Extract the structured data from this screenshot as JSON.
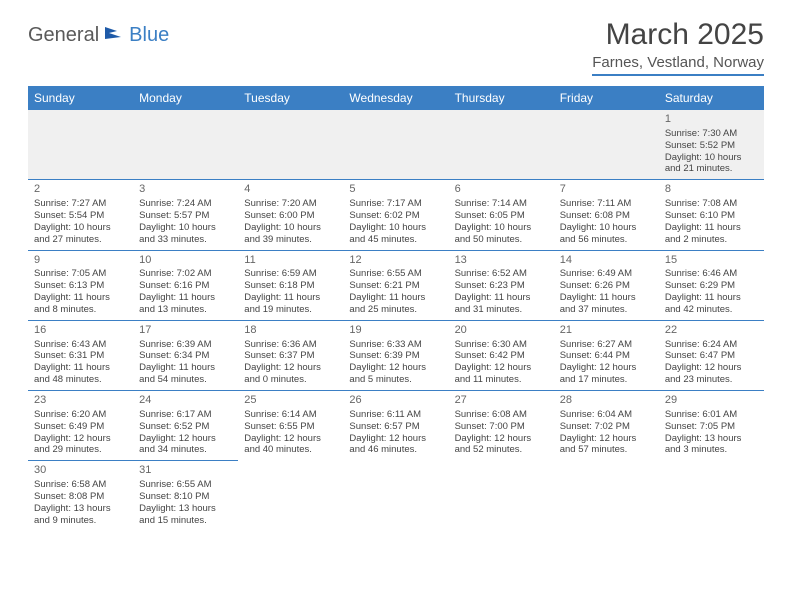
{
  "logo": {
    "general": "General",
    "blue": "Blue"
  },
  "title": "March 2025",
  "location": "Farnes, Vestland, Norway",
  "colors": {
    "header_bg": "#3b7fc4",
    "header_text": "#ffffff",
    "rule": "#3b7fc4",
    "body_text": "#444444",
    "alt_row_bg": "#f0f0f0"
  },
  "day_headers": [
    "Sunday",
    "Monday",
    "Tuesday",
    "Wednesday",
    "Thursday",
    "Friday",
    "Saturday"
  ],
  "weeks": [
    [
      null,
      null,
      null,
      null,
      null,
      null,
      {
        "n": "1",
        "sr": "Sunrise: 7:30 AM",
        "ss": "Sunset: 5:52 PM",
        "dl": "Daylight: 10 hours and 21 minutes."
      }
    ],
    [
      {
        "n": "2",
        "sr": "Sunrise: 7:27 AM",
        "ss": "Sunset: 5:54 PM",
        "dl": "Daylight: 10 hours and 27 minutes."
      },
      {
        "n": "3",
        "sr": "Sunrise: 7:24 AM",
        "ss": "Sunset: 5:57 PM",
        "dl": "Daylight: 10 hours and 33 minutes."
      },
      {
        "n": "4",
        "sr": "Sunrise: 7:20 AM",
        "ss": "Sunset: 6:00 PM",
        "dl": "Daylight: 10 hours and 39 minutes."
      },
      {
        "n": "5",
        "sr": "Sunrise: 7:17 AM",
        "ss": "Sunset: 6:02 PM",
        "dl": "Daylight: 10 hours and 45 minutes."
      },
      {
        "n": "6",
        "sr": "Sunrise: 7:14 AM",
        "ss": "Sunset: 6:05 PM",
        "dl": "Daylight: 10 hours and 50 minutes."
      },
      {
        "n": "7",
        "sr": "Sunrise: 7:11 AM",
        "ss": "Sunset: 6:08 PM",
        "dl": "Daylight: 10 hours and 56 minutes."
      },
      {
        "n": "8",
        "sr": "Sunrise: 7:08 AM",
        "ss": "Sunset: 6:10 PM",
        "dl": "Daylight: 11 hours and 2 minutes."
      }
    ],
    [
      {
        "n": "9",
        "sr": "Sunrise: 7:05 AM",
        "ss": "Sunset: 6:13 PM",
        "dl": "Daylight: 11 hours and 8 minutes."
      },
      {
        "n": "10",
        "sr": "Sunrise: 7:02 AM",
        "ss": "Sunset: 6:16 PM",
        "dl": "Daylight: 11 hours and 13 minutes."
      },
      {
        "n": "11",
        "sr": "Sunrise: 6:59 AM",
        "ss": "Sunset: 6:18 PM",
        "dl": "Daylight: 11 hours and 19 minutes."
      },
      {
        "n": "12",
        "sr": "Sunrise: 6:55 AM",
        "ss": "Sunset: 6:21 PM",
        "dl": "Daylight: 11 hours and 25 minutes."
      },
      {
        "n": "13",
        "sr": "Sunrise: 6:52 AM",
        "ss": "Sunset: 6:23 PM",
        "dl": "Daylight: 11 hours and 31 minutes."
      },
      {
        "n": "14",
        "sr": "Sunrise: 6:49 AM",
        "ss": "Sunset: 6:26 PM",
        "dl": "Daylight: 11 hours and 37 minutes."
      },
      {
        "n": "15",
        "sr": "Sunrise: 6:46 AM",
        "ss": "Sunset: 6:29 PM",
        "dl": "Daylight: 11 hours and 42 minutes."
      }
    ],
    [
      {
        "n": "16",
        "sr": "Sunrise: 6:43 AM",
        "ss": "Sunset: 6:31 PM",
        "dl": "Daylight: 11 hours and 48 minutes."
      },
      {
        "n": "17",
        "sr": "Sunrise: 6:39 AM",
        "ss": "Sunset: 6:34 PM",
        "dl": "Daylight: 11 hours and 54 minutes."
      },
      {
        "n": "18",
        "sr": "Sunrise: 6:36 AM",
        "ss": "Sunset: 6:37 PM",
        "dl": "Daylight: 12 hours and 0 minutes."
      },
      {
        "n": "19",
        "sr": "Sunrise: 6:33 AM",
        "ss": "Sunset: 6:39 PM",
        "dl": "Daylight: 12 hours and 5 minutes."
      },
      {
        "n": "20",
        "sr": "Sunrise: 6:30 AM",
        "ss": "Sunset: 6:42 PM",
        "dl": "Daylight: 12 hours and 11 minutes."
      },
      {
        "n": "21",
        "sr": "Sunrise: 6:27 AM",
        "ss": "Sunset: 6:44 PM",
        "dl": "Daylight: 12 hours and 17 minutes."
      },
      {
        "n": "22",
        "sr": "Sunrise: 6:24 AM",
        "ss": "Sunset: 6:47 PM",
        "dl": "Daylight: 12 hours and 23 minutes."
      }
    ],
    [
      {
        "n": "23",
        "sr": "Sunrise: 6:20 AM",
        "ss": "Sunset: 6:49 PM",
        "dl": "Daylight: 12 hours and 29 minutes."
      },
      {
        "n": "24",
        "sr": "Sunrise: 6:17 AM",
        "ss": "Sunset: 6:52 PM",
        "dl": "Daylight: 12 hours and 34 minutes."
      },
      {
        "n": "25",
        "sr": "Sunrise: 6:14 AM",
        "ss": "Sunset: 6:55 PM",
        "dl": "Daylight: 12 hours and 40 minutes."
      },
      {
        "n": "26",
        "sr": "Sunrise: 6:11 AM",
        "ss": "Sunset: 6:57 PM",
        "dl": "Daylight: 12 hours and 46 minutes."
      },
      {
        "n": "27",
        "sr": "Sunrise: 6:08 AM",
        "ss": "Sunset: 7:00 PM",
        "dl": "Daylight: 12 hours and 52 minutes."
      },
      {
        "n": "28",
        "sr": "Sunrise: 6:04 AM",
        "ss": "Sunset: 7:02 PM",
        "dl": "Daylight: 12 hours and 57 minutes."
      },
      {
        "n": "29",
        "sr": "Sunrise: 6:01 AM",
        "ss": "Sunset: 7:05 PM",
        "dl": "Daylight: 13 hours and 3 minutes."
      }
    ],
    [
      {
        "n": "30",
        "sr": "Sunrise: 6:58 AM",
        "ss": "Sunset: 8:08 PM",
        "dl": "Daylight: 13 hours and 9 minutes."
      },
      {
        "n": "31",
        "sr": "Sunrise: 6:55 AM",
        "ss": "Sunset: 8:10 PM",
        "dl": "Daylight: 13 hours and 15 minutes."
      },
      null,
      null,
      null,
      null,
      null
    ]
  ]
}
